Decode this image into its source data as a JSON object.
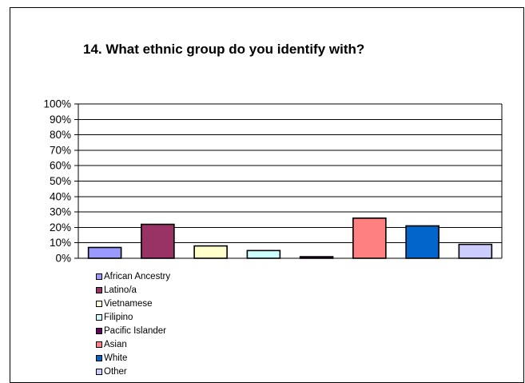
{
  "chart_data": {
    "type": "bar",
    "title": "14. What ethnic group do you identify with?",
    "categories": [
      "African Ancestry",
      "Latino/a",
      "Vietnamese",
      "Filipino",
      "Pacific Islander",
      "Asian",
      "White",
      "Other"
    ],
    "values": [
      7,
      22,
      8,
      5,
      1,
      26,
      21,
      9
    ],
    "colors": [
      "#9999ff",
      "#993366",
      "#ffffcc",
      "#ccffff",
      "#660066",
      "#ff8080",
      "#0066cc",
      "#ccccff"
    ],
    "ylim": [
      0,
      100
    ],
    "yticks": [
      "0%",
      "10%",
      "20%",
      "30%",
      "40%",
      "50%",
      "60%",
      "70%",
      "80%",
      "90%",
      "100%"
    ],
    "xlabel": "",
    "ylabel": "",
    "grid": true,
    "legend_position": "bottom-left"
  }
}
